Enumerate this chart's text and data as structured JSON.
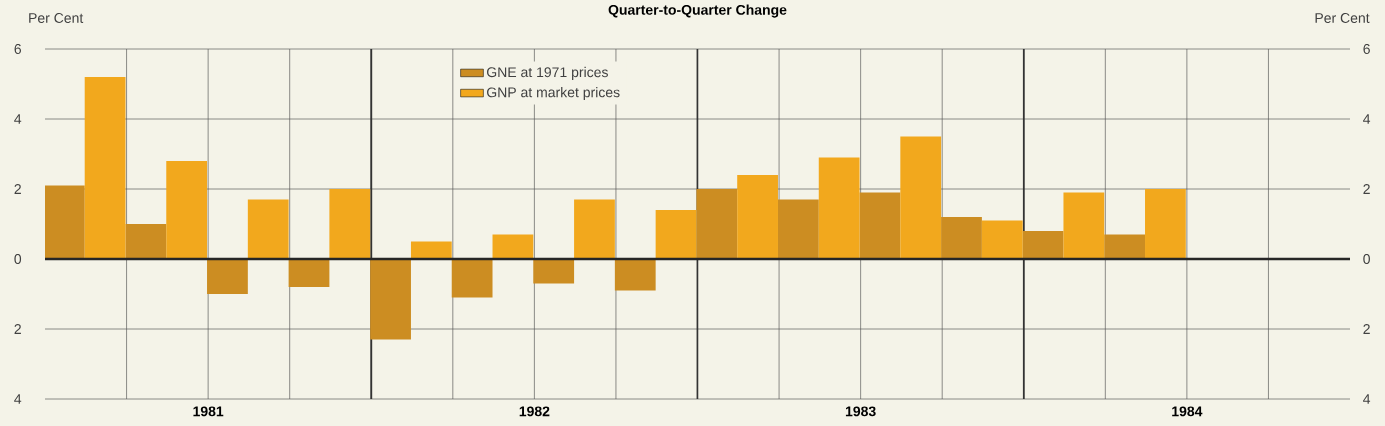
{
  "chart_data": {
    "type": "bar",
    "title": "Quarter-to-Quarter Change",
    "ylabel": "Per Cent",
    "y2label": "Per Cent",
    "x": [
      "1981-02-15",
      "1981-05-15",
      "1981-08-15",
      "1981-11-15",
      "1982-02-15",
      "1982-05-15",
      "1982-08-15",
      "1982-11-15",
      "1983-02-15",
      "1983-05-15",
      "1983-08-15",
      "1983-11-15",
      "1984-02-15",
      "1984-05-15"
    ],
    "series": [
      {
        "name": "GNE at 1971 prices",
        "color": "#cc8d22",
        "values": [
          2.1,
          1.0,
          -1.0,
          -0.8,
          -2.3,
          -1.1,
          -0.7,
          -0.9,
          2.0,
          1.7,
          1.9,
          1.2,
          0.8,
          0.7
        ]
      },
      {
        "name": "GNP at market prices",
        "color": "#f2a81d",
        "values": [
          5.2,
          2.8,
          1.7,
          2.0,
          0.5,
          0.7,
          1.7,
          1.4,
          2.4,
          2.9,
          3.5,
          1.1,
          1.9,
          2.0
        ]
      }
    ],
    "xlim": [
      "1981-01",
      "1985-01"
    ],
    "xticks": [
      {
        "value": "1981-04",
        "label": null
      },
      {
        "value": "1981-07",
        "label": "1981"
      },
      {
        "value": "1981-07",
        "label": null
      },
      {
        "value": "1981-10",
        "label": null
      },
      {
        "value": "1982-01",
        "label": null
      },
      {
        "value": "1982-04",
        "label": null
      },
      {
        "value": "1982-07",
        "label": "1982"
      },
      {
        "value": "1982-07",
        "label": null
      },
      {
        "value": "1982-10",
        "label": null
      },
      {
        "value": "1983-01",
        "label": null
      },
      {
        "value": "1983-04",
        "label": null
      },
      {
        "value": "1983-07",
        "label": "1983"
      },
      {
        "value": "1983-07",
        "label": null
      },
      {
        "value": "1983-10",
        "label": null
      },
      {
        "value": "1984-01",
        "label": null
      },
      {
        "value": "1984-04",
        "label": null
      },
      {
        "value": "1984-07",
        "label": "1984"
      },
      {
        "value": "1984-07",
        "label": null
      },
      {
        "value": "1984-10",
        "label": null
      }
    ],
    "ylim": [
      -4,
      6
    ],
    "yticks": [
      {
        "value": -4,
        "label": "4"
      },
      {
        "value": -2,
        "label": "2"
      },
      0,
      2,
      4,
      6
    ],
    "y2lim": [
      -4,
      6
    ],
    "y2ticks": [
      {
        "value": -4,
        "label": "4"
      },
      {
        "value": -2,
        "label": "2"
      },
      0,
      2,
      4,
      6
    ],
    "grid": true,
    "legend": "top"
  }
}
